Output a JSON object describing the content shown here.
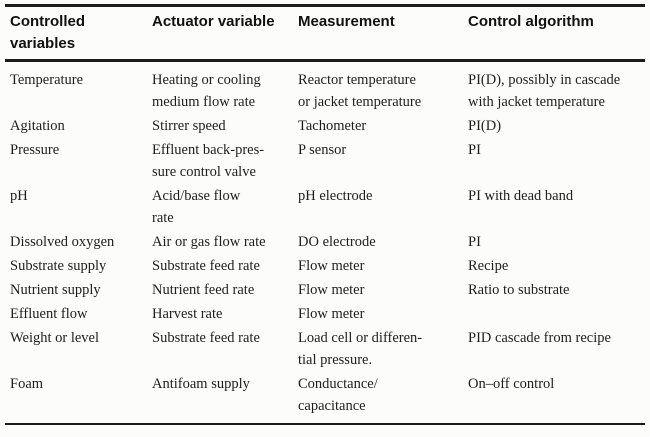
{
  "colors": {
    "background": "#fcfcfb",
    "text": "#1e1e1e",
    "rule": "#1c1c1c"
  },
  "table": {
    "columns": [
      "Controlled\nvariables",
      "Actuator variable",
      "Measurement",
      "Control algorithm"
    ],
    "rows": [
      [
        "Temperature",
        "Heating or cooling\nmedium flow rate",
        "Reactor temperature\nor jacket temperature",
        "PI(D), possibly in cascade\nwith jacket temperature"
      ],
      [
        "Agitation",
        "Stirrer speed",
        "Tachometer",
        "PI(D)"
      ],
      [
        "Pressure",
        "Effluent back-pres-\nsure control valve",
        "P sensor",
        "PI"
      ],
      [
        "pH",
        "Acid/base flow\nrate",
        "pH electrode",
        "PI with dead band"
      ],
      [
        "Dissolved oxygen",
        "Air or gas flow rate",
        "DO electrode",
        "PI"
      ],
      [
        "Substrate supply",
        "Substrate feed rate",
        "Flow meter",
        "Recipe"
      ],
      [
        "Nutrient supply",
        "Nutrient feed rate",
        "Flow meter",
        "Ratio to substrate"
      ],
      [
        "Effluent flow",
        "Harvest rate",
        "Flow meter",
        ""
      ],
      [
        "Weight or level",
        "Substrate feed rate",
        "Load cell or differen-\ntial pressure.",
        "PID cascade from recipe"
      ],
      [
        "Foam",
        "Antifoam supply",
        "Conductance/\ncapacitance",
        "On–off control"
      ]
    ]
  }
}
